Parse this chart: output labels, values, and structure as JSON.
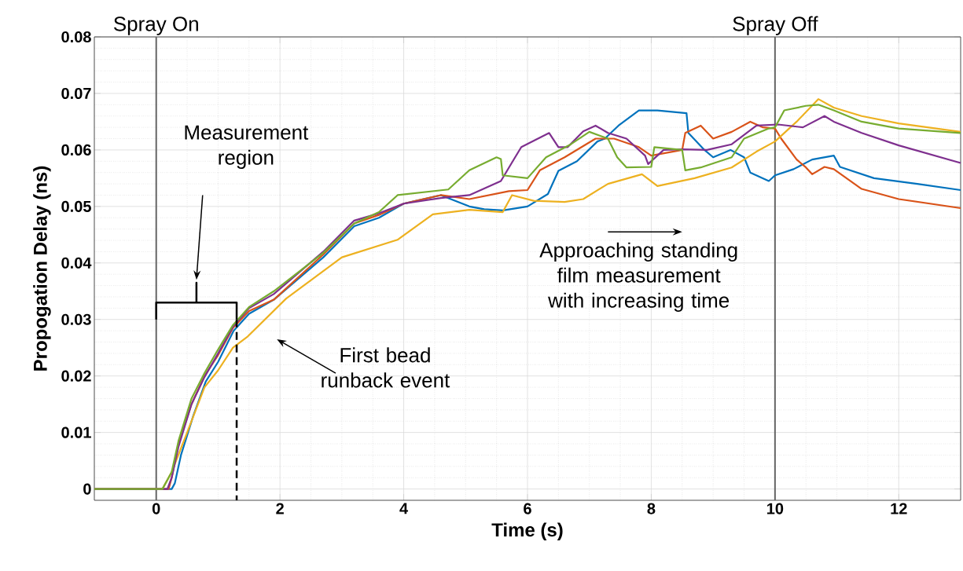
{
  "chart_data": {
    "type": "line",
    "xlabel": "Time (s)",
    "ylabel": "Propogation Delay (ns)",
    "xlim": [
      -1,
      13
    ],
    "ylim": [
      -0.002,
      0.08
    ],
    "xticks": [
      0,
      2,
      4,
      6,
      8,
      10,
      12
    ],
    "yticks": [
      {
        "value": 0,
        "label": "0"
      },
      0.01,
      0.02,
      0.03,
      0.04,
      0.05,
      0.06,
      0.07,
      0.08
    ],
    "grid": true,
    "line_style": "solid",
    "marker": "none",
    "series": [
      {
        "color": "#0072bd",
        "x": [
          -1,
          0.25,
          0.3,
          0.4,
          0.6,
          0.8,
          1.0,
          1.25,
          1.5,
          1.9,
          2.7,
          3.2,
          3.6,
          4.0,
          4.6,
          5.06,
          5.3,
          5.6,
          6.0,
          6.33,
          6.5,
          6.8,
          7.13,
          7.25,
          7.47,
          7.8,
          8.1,
          8.57,
          8.6,
          8.86,
          9.0,
          9.28,
          9.5,
          9.6,
          9.9,
          10.0,
          10.3,
          10.6,
          10.95,
          11.05,
          11.6,
          12.3,
          13.0
        ],
        "values": [
          0,
          0,
          0.001,
          0.006,
          0.013,
          0.019,
          0.0225,
          0.028,
          0.031,
          0.0335,
          0.041,
          0.0465,
          0.048,
          0.0505,
          0.052,
          0.05,
          0.0495,
          0.0493,
          0.05,
          0.0522,
          0.0563,
          0.058,
          0.0615,
          0.062,
          0.0643,
          0.067,
          0.067,
          0.0665,
          0.063,
          0.06,
          0.0587,
          0.06,
          0.0587,
          0.056,
          0.0545,
          0.0555,
          0.0566,
          0.0583,
          0.059,
          0.057,
          0.055,
          0.054,
          0.0529
        ]
      },
      {
        "color": "#d95319",
        "x": [
          -1,
          0.2,
          0.25,
          0.36,
          0.57,
          0.78,
          0.99,
          1.24,
          1.5,
          1.9,
          2.7,
          3.2,
          3.6,
          4.0,
          4.6,
          5.06,
          5.7,
          6.0,
          6.2,
          6.6,
          7.1,
          7.4,
          7.8,
          8.0,
          8.5,
          8.55,
          8.8,
          9.0,
          9.3,
          9.6,
          9.8,
          10.0,
          10.1,
          10.35,
          10.5,
          10.6,
          10.8,
          10.95,
          11.4,
          12.0,
          13.0
        ],
        "values": [
          0,
          0,
          0.002,
          0.008,
          0.015,
          0.02,
          0.0235,
          0.0285,
          0.0315,
          0.0335,
          0.0415,
          0.047,
          0.0485,
          0.0505,
          0.052,
          0.0513,
          0.0527,
          0.0529,
          0.0564,
          0.0587,
          0.062,
          0.062,
          0.0605,
          0.059,
          0.06,
          0.063,
          0.0643,
          0.062,
          0.0632,
          0.065,
          0.064,
          0.0638,
          0.062,
          0.0583,
          0.0569,
          0.0557,
          0.057,
          0.0566,
          0.0531,
          0.0513,
          0.0497
        ]
      },
      {
        "color": "#edb120",
        "x": [
          -1,
          0.1,
          0.25,
          0.5,
          0.78,
          1.0,
          1.24,
          1.48,
          2.1,
          3.0,
          3.9,
          4.47,
          5.06,
          5.6,
          5.75,
          6.1,
          6.6,
          6.9,
          7.3,
          7.85,
          8.1,
          8.7,
          9.3,
          9.7,
          10.0,
          10.35,
          10.7,
          10.95,
          11.4,
          12.0,
          13.0
        ],
        "values": [
          0,
          0,
          0.003,
          0.01,
          0.018,
          0.021,
          0.025,
          0.027,
          0.0337,
          0.041,
          0.0441,
          0.0486,
          0.0494,
          0.049,
          0.052,
          0.051,
          0.0508,
          0.0513,
          0.054,
          0.0557,
          0.0536,
          0.055,
          0.0569,
          0.0597,
          0.0615,
          0.065,
          0.069,
          0.0675,
          0.066,
          0.0647,
          0.0632
        ]
      },
      {
        "color": "#7e2f8e",
        "x": [
          -1,
          0.18,
          0.25,
          0.36,
          0.57,
          0.78,
          0.99,
          1.24,
          1.5,
          1.9,
          2.7,
          3.2,
          3.6,
          4.0,
          4.6,
          5.06,
          5.57,
          5.8,
          5.9,
          6.35,
          6.5,
          6.65,
          6.9,
          7.1,
          7.3,
          7.6,
          7.9,
          7.95,
          8.2,
          8.5,
          8.9,
          9.3,
          9.7,
          10.05,
          10.45,
          10.8,
          10.95,
          11.4,
          12.0,
          13.0
        ],
        "values": [
          0,
          0,
          0.002,
          0.0075,
          0.015,
          0.0198,
          0.0238,
          0.0287,
          0.032,
          0.0345,
          0.042,
          0.0475,
          0.0488,
          0.0505,
          0.0515,
          0.052,
          0.0545,
          0.0587,
          0.0605,
          0.063,
          0.0605,
          0.0605,
          0.0633,
          0.0643,
          0.063,
          0.062,
          0.059,
          0.0575,
          0.06,
          0.0601,
          0.06,
          0.061,
          0.0643,
          0.0645,
          0.064,
          0.066,
          0.065,
          0.063,
          0.0608,
          0.0577
        ]
      },
      {
        "color": "#77ac30",
        "x": [
          -1,
          0.1,
          0.25,
          0.36,
          0.57,
          0.78,
          0.99,
          1.24,
          1.5,
          1.9,
          2.7,
          3.2,
          3.6,
          3.9,
          4.72,
          5.06,
          5.5,
          5.57,
          5.6,
          6.0,
          6.3,
          6.7,
          7.0,
          7.3,
          7.45,
          7.6,
          8.0,
          8.05,
          8.5,
          8.55,
          8.8,
          9.3,
          9.5,
          9.9,
          10.0,
          10.15,
          10.5,
          10.7,
          10.95,
          11.4,
          12.0,
          13.0
        ],
        "values": [
          0,
          0,
          0.003,
          0.0085,
          0.016,
          0.0205,
          0.0245,
          0.029,
          0.0322,
          0.035,
          0.0418,
          0.047,
          0.049,
          0.052,
          0.053,
          0.0564,
          0.0587,
          0.0584,
          0.0555,
          0.055,
          0.0587,
          0.061,
          0.0632,
          0.062,
          0.0587,
          0.0569,
          0.057,
          0.0605,
          0.06,
          0.0564,
          0.0569,
          0.0587,
          0.062,
          0.0638,
          0.064,
          0.067,
          0.0678,
          0.068,
          0.067,
          0.065,
          0.0638,
          0.063
        ]
      }
    ],
    "ref_lines": [
      {
        "axis": "x",
        "value": 0,
        "label": "Spray On"
      },
      {
        "axis": "x",
        "value": 10,
        "label": "Spray Off"
      }
    ],
    "annotations": [
      "Measurement region",
      "First bead runback event",
      "Approaching standing film measurement with increasing time"
    ]
  }
}
